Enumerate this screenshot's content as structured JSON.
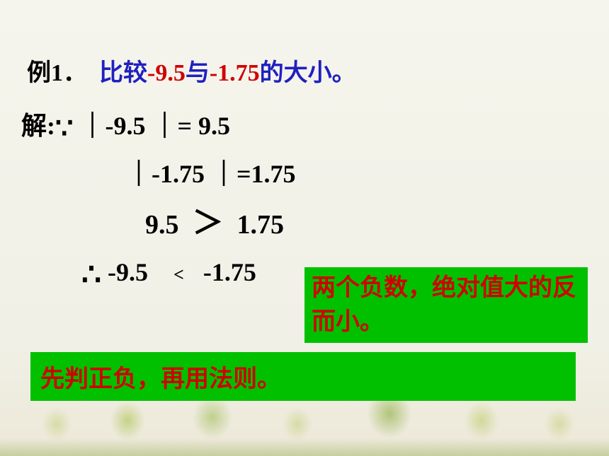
{
  "example": {
    "label": "例1．",
    "prefix": "比较",
    "num1": "-9.5",
    "middle": "与",
    "num2": "-1.75",
    "suffix": "的大小。"
  },
  "solution": {
    "label": "解:",
    "because_symbol": "∵",
    "abs1_expr": "｜-9.5 ｜=",
    "abs1_val": " 9.5",
    "abs2_expr": "｜-1.75 ｜=",
    "abs2_val": "1.75",
    "compare_left": "9.5",
    "compare_op": "＞",
    "compare_right": "1.75",
    "therefore_symbol": "∴",
    "result_left": "-9.5",
    "result_op": "<",
    "result_right": "-1.75"
  },
  "boxes": {
    "rule": "两个负数，绝对值大的反而小。",
    "tip": "先判正负，再用法则。"
  },
  "colors": {
    "blue": "#2020c0",
    "red": "#d00000",
    "green_bg": "#00c000",
    "black": "#000000",
    "bg": "#f5f5ed"
  },
  "fonts": {
    "chinese": "SimSun",
    "math": "Times New Roman",
    "title_size": 34,
    "body_size": 36,
    "box_size": 34
  }
}
